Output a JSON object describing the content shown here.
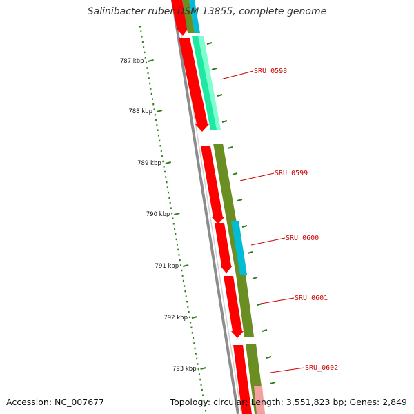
{
  "title": "Salinibacter ruber DSM 13855, complete genome",
  "footer": {
    "accession": "Accession: NC_007677",
    "summary": "Topology: circular; Length: 3,551,823 bp; Genes: 2,849"
  },
  "colors": {
    "backbone": "#8c8c8c",
    "forward_cds": "#ff0000",
    "rna_like": "#1ee9a2",
    "olive_feature": "#6b8e23",
    "cyan_feature": "#00bcd4",
    "tick": "#2e7d1a",
    "label": "#cc0000"
  },
  "ruler": {
    "unit": "kbp",
    "ticks": [
      {
        "kbp": 787,
        "label": "787 kbp"
      },
      {
        "kbp": 788,
        "label": "788 kbp"
      },
      {
        "kbp": 789,
        "label": "789 kbp"
      },
      {
        "kbp": 790,
        "label": "790 kbp"
      },
      {
        "kbp": 791,
        "label": "791 kbp"
      },
      {
        "kbp": 792,
        "label": "792 kbp"
      },
      {
        "kbp": 793,
        "label": "793 kbp"
      }
    ]
  },
  "genes": [
    {
      "label": "SRU_0598"
    },
    {
      "label": "SRU_0599"
    },
    {
      "label": "SRU_0600"
    },
    {
      "label": "SRU_0601"
    },
    {
      "label": "SRU_0602"
    }
  ]
}
